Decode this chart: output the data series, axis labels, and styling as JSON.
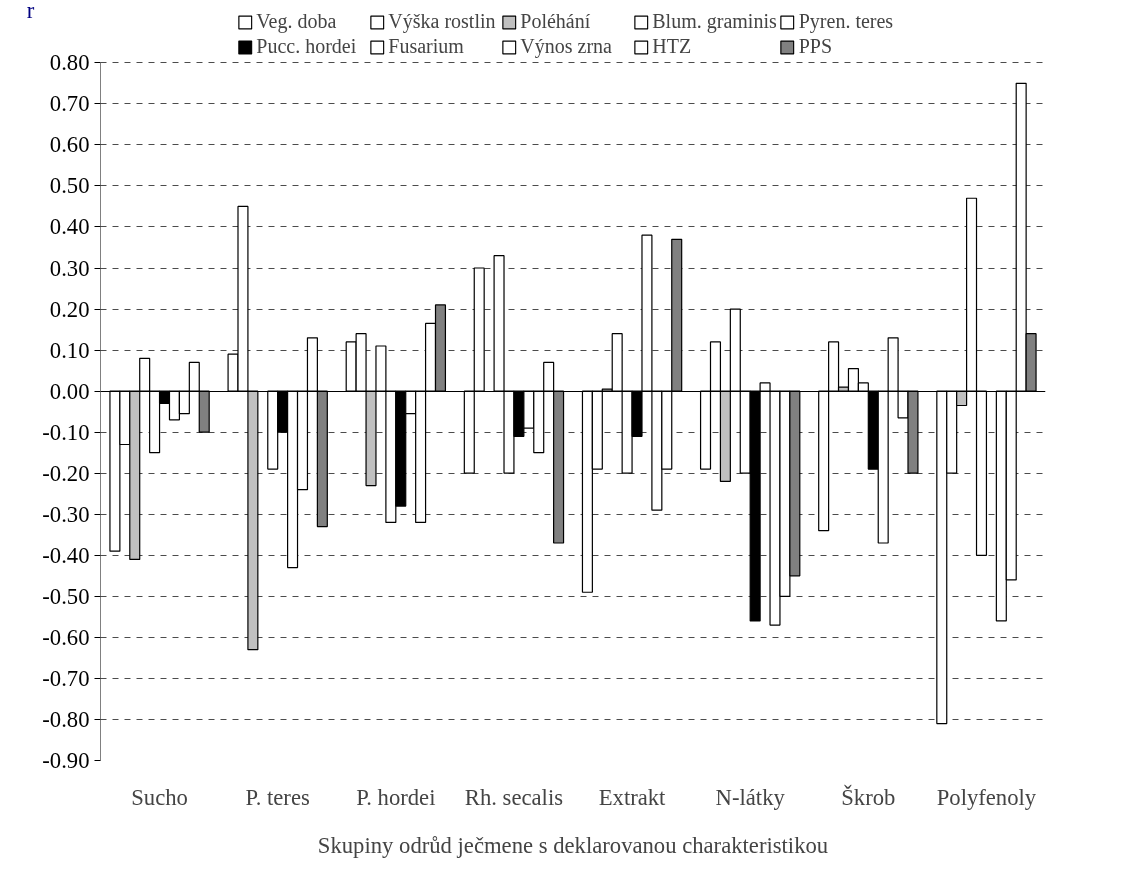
{
  "chart_data": {
    "type": "bar",
    "ylabel": "r",
    "xlabel": "Skupiny odrůd ječmene s deklarovanou charakteristikou",
    "categories": [
      "Sucho",
      "P. teres",
      "P. hordei",
      "Rh. secalis",
      "Extrakt",
      "N-látky",
      "Škrob",
      "Polyfenoly"
    ],
    "series": [
      {
        "name": "Veg. doba",
        "color": "#ffffff",
        "values": [
          -0.39,
          0.09,
          0.12,
          -0.2,
          -0.49,
          -0.19,
          -0.34,
          -0.81
        ]
      },
      {
        "name": "Výška rostlin",
        "color": "#ffffff",
        "values": [
          -0.13,
          0.45,
          0.14,
          0.3,
          -0.19,
          0.12,
          0.12,
          -0.2
        ]
      },
      {
        "name": "Poléhání",
        "color": "#c0c0c0",
        "values": [
          -0.41,
          -0.63,
          -0.23,
          null,
          0.005,
          -0.22,
          0.01,
          -0.035
        ]
      },
      {
        "name": "Blum. graminis",
        "color": "#ffffff",
        "values": [
          0.08,
          null,
          0.11,
          0.33,
          0.14,
          0.2,
          0.055,
          0.47
        ]
      },
      {
        "name": "Pyren. teres",
        "color": "#ffffff",
        "values": [
          -0.15,
          -0.19,
          -0.32,
          -0.2,
          -0.2,
          -0.2,
          0.02,
          -0.4
        ]
      },
      {
        "name": "Pucc. hordei",
        "color": "#000000",
        "values": [
          -0.03,
          -0.1,
          -0.28,
          -0.11,
          -0.11,
          -0.56,
          -0.19,
          null
        ]
      },
      {
        "name": "Fusarium",
        "color": "#ffffff",
        "values": [
          -0.07,
          -0.43,
          -0.055,
          -0.09,
          0.38,
          0.02,
          -0.37,
          -0.56
        ]
      },
      {
        "name": "Výnos zrna",
        "color": "#ffffff",
        "values": [
          -0.055,
          -0.24,
          -0.32,
          -0.15,
          -0.29,
          -0.57,
          0.13,
          -0.46
        ]
      },
      {
        "name": "HTZ",
        "color": "#ffffff",
        "values": [
          0.07,
          0.13,
          0.165,
          0.07,
          -0.19,
          -0.5,
          -0.065,
          0.75
        ]
      },
      {
        "name": "PPS",
        "color": "#808080",
        "values": [
          -0.1,
          -0.33,
          0.21,
          -0.37,
          0.37,
          -0.45,
          -0.2,
          0.14
        ]
      }
    ],
    "ylim": [
      -0.9,
      0.8
    ],
    "yticks": [
      {
        "value": -0.9,
        "label": "-0.90"
      },
      {
        "value": -0.8,
        "label": "-0.80"
      },
      {
        "value": -0.7,
        "label": "-0.70"
      },
      {
        "value": -0.6,
        "label": "-0.60"
      },
      {
        "value": -0.5,
        "label": "-0.50"
      },
      {
        "value": -0.4,
        "label": "-0.40"
      },
      {
        "value": -0.3,
        "label": "-0.30"
      },
      {
        "value": -0.2,
        "label": "-0.20"
      },
      {
        "value": -0.1,
        "label": "-0.10"
      },
      {
        "value": 0.0,
        "label": "0.00"
      },
      {
        "value": 0.1,
        "label": "0.10"
      },
      {
        "value": 0.2,
        "label": "0.20"
      },
      {
        "value": 0.3,
        "label": "0.30"
      },
      {
        "value": 0.4,
        "label": "0.40"
      },
      {
        "value": 0.5,
        "label": "0.50"
      },
      {
        "value": 0.6,
        "label": "0.60"
      },
      {
        "value": 0.7,
        "label": "0.70"
      },
      {
        "value": 0.8,
        "label": "0.80"
      }
    ],
    "grid": "y",
    "legend": "top"
  }
}
